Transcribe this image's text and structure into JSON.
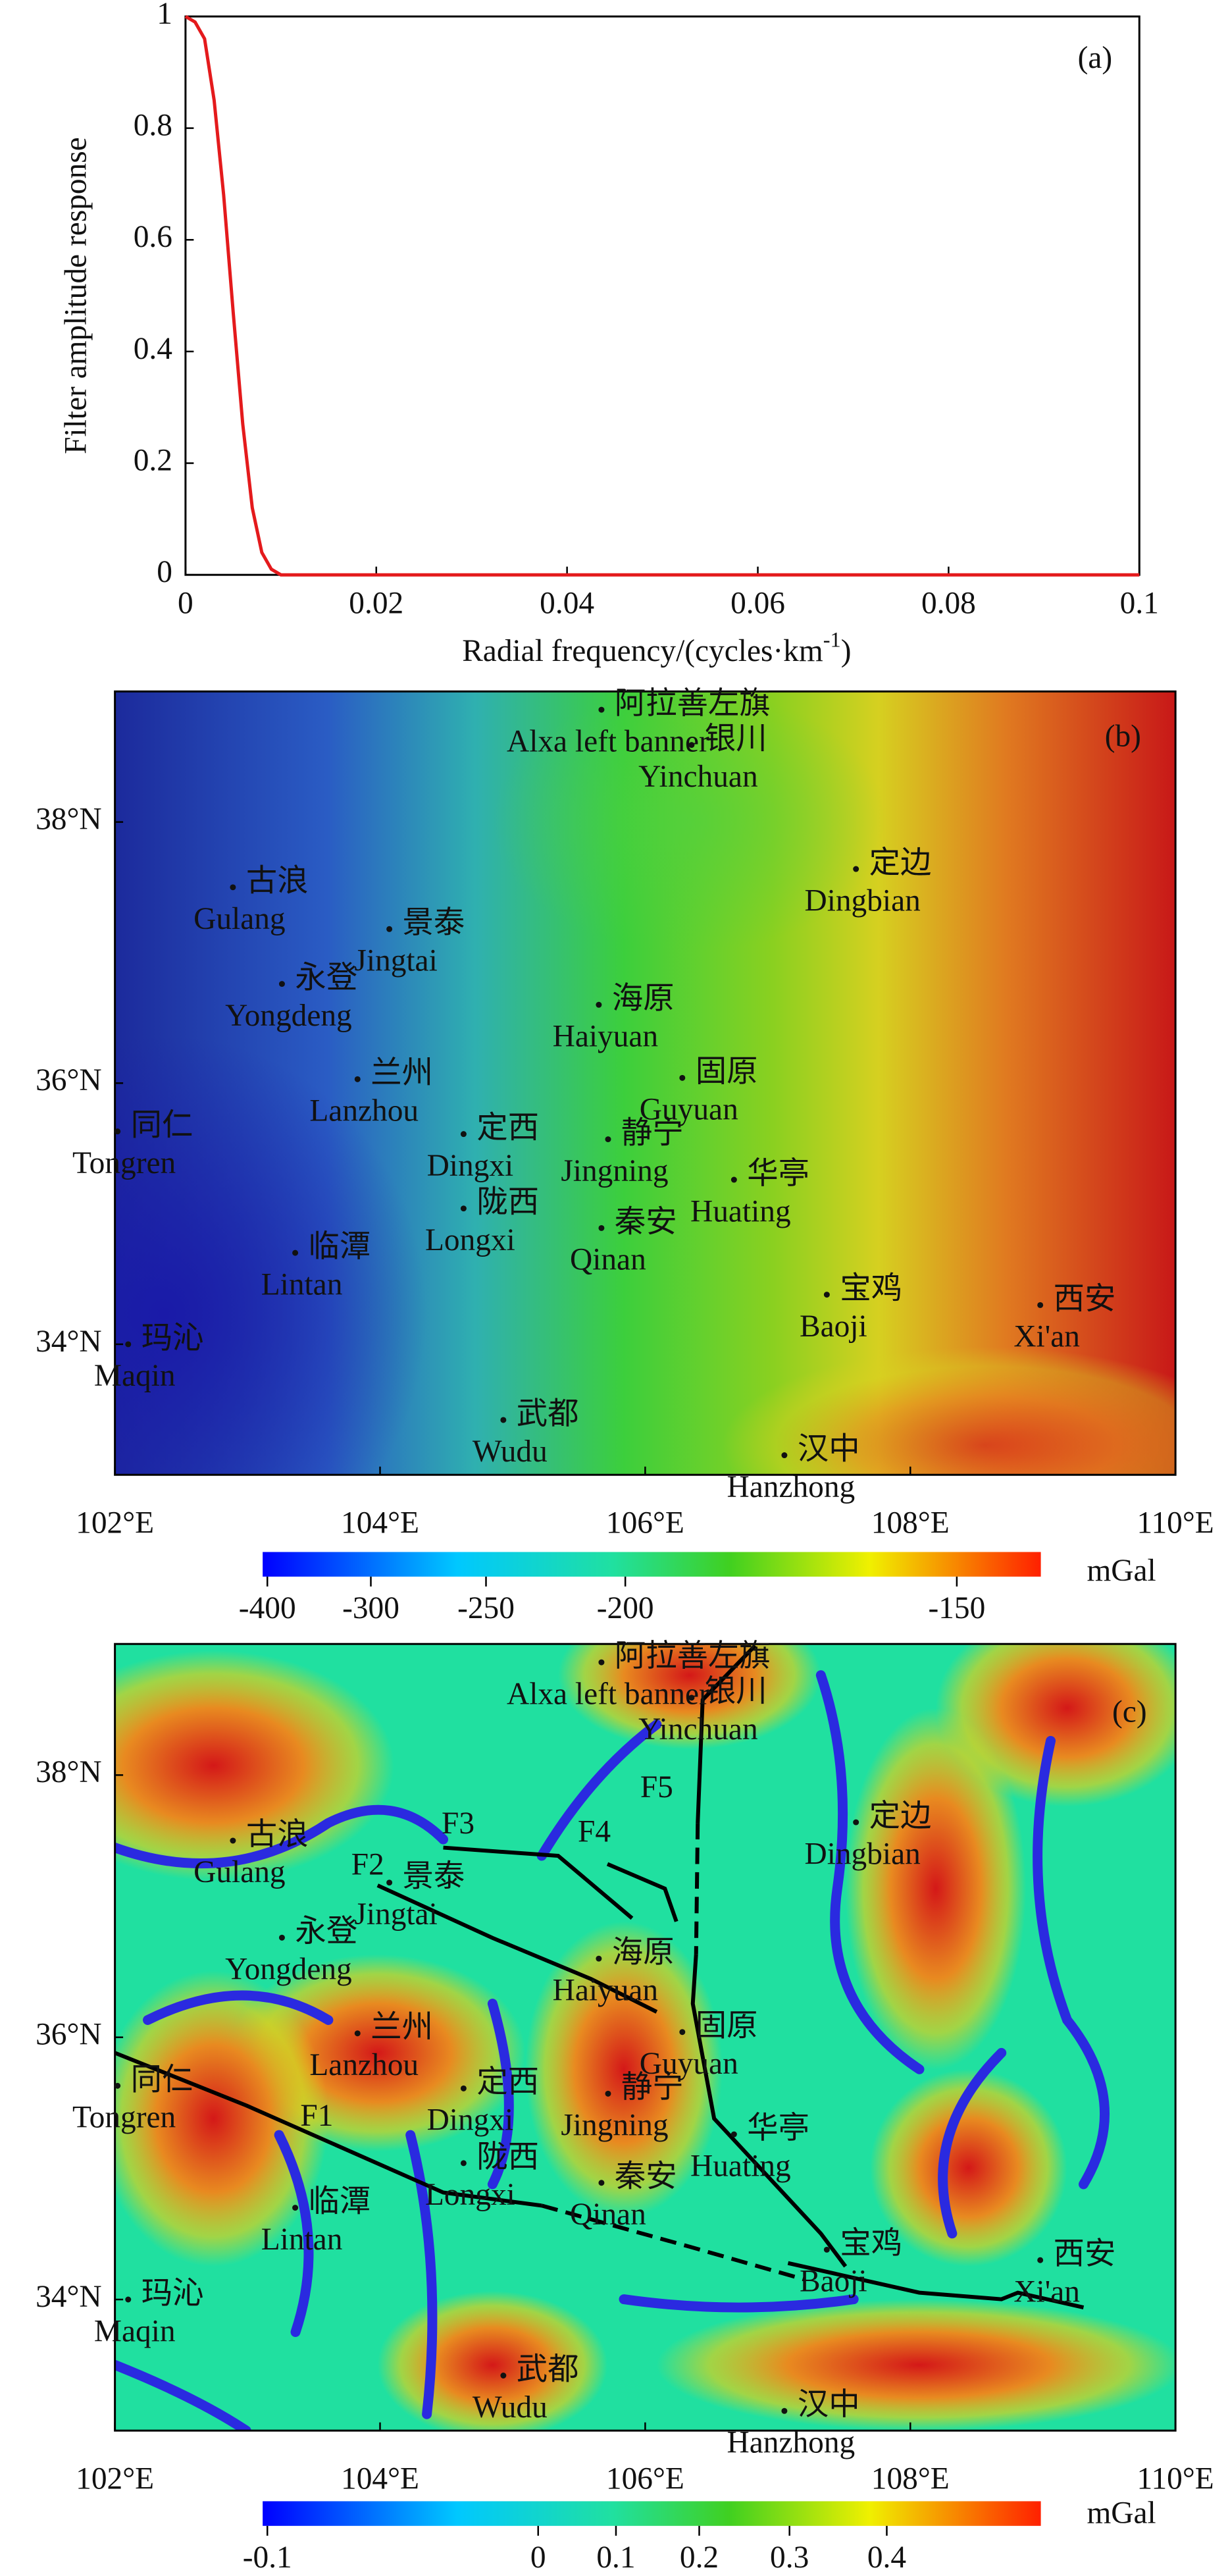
{
  "chart_data": [
    {
      "type": "line",
      "panel_label": "(a)",
      "x_label": "Radial frequency/(cycles·km",
      "x_label_sup": "-1",
      "x_label_end": ")",
      "y_label": "Filter amplitude response",
      "x": [
        0,
        0.001,
        0.002,
        0.003,
        0.004,
        0.005,
        0.006,
        0.007,
        0.008,
        0.009,
        0.01,
        0.02,
        0.03,
        0.04,
        0.05,
        0.06,
        0.07,
        0.08,
        0.09,
        0.1
      ],
      "values": [
        1,
        0.99,
        0.96,
        0.85,
        0.68,
        0.47,
        0.27,
        0.12,
        0.04,
        0.01,
        0,
        0,
        0,
        0,
        0,
        0,
        0,
        0,
        0,
        0
      ],
      "color": "#e41a1c",
      "xlim": [
        0,
        0.1
      ],
      "ylim": [
        0,
        1
      ],
      "xticks": [
        0,
        0.02,
        0.04,
        0.06,
        0.08,
        0.1
      ],
      "yticks": [
        0,
        0.2,
        0.4,
        0.6,
        0.8,
        1
      ]
    },
    {
      "type": "map",
      "panel_label": "(b)",
      "xlim": [
        102,
        110
      ],
      "ylim": [
        33,
        39
      ],
      "xticks": [
        {
          "value": 102,
          "label": "102°E"
        },
        {
          "value": 104,
          "label": "104°E"
        },
        {
          "value": 106,
          "label": "106°E"
        },
        {
          "value": 108,
          "label": "108°E"
        },
        {
          "value": 110,
          "label": "110°E"
        }
      ],
      "yticks": [
        {
          "value": 34,
          "label": "34°N"
        },
        {
          "value": 36,
          "label": "36°N"
        },
        {
          "value": 38,
          "label": "38°N"
        }
      ],
      "cities": [
        {
          "name_zh": "阿拉善左旗",
          "name_en": "Alxa left banner",
          "lon": 105.67,
          "lat": 38.86
        },
        {
          "name_zh": "银川",
          "name_en": "Yinchuan",
          "lon": 106.35,
          "lat": 38.59
        },
        {
          "name_zh": "定边",
          "name_en": "Dingbian",
          "lon": 107.59,
          "lat": 37.64
        },
        {
          "name_zh": "古浪",
          "name_en": "Gulang",
          "lon": 102.89,
          "lat": 37.5
        },
        {
          "name_zh": "景泰",
          "name_en": "Jingtai",
          "lon": 104.07,
          "lat": 37.18
        },
        {
          "name_zh": "永登",
          "name_en": "Yongdeng",
          "lon": 103.26,
          "lat": 36.76
        },
        {
          "name_zh": "海原",
          "name_en": "Haiyuan",
          "lon": 105.65,
          "lat": 36.6
        },
        {
          "name_zh": "固原",
          "name_en": "Guyuan",
          "lon": 106.28,
          "lat": 36.04
        },
        {
          "name_zh": "兰州",
          "name_en": "Lanzhou",
          "lon": 103.83,
          "lat": 36.03
        },
        {
          "name_zh": "同仁",
          "name_en": "Tongren",
          "lon": 102.02,
          "lat": 35.63
        },
        {
          "name_zh": "定西",
          "name_en": "Dingxi",
          "lon": 104.63,
          "lat": 35.61
        },
        {
          "name_zh": "静宁",
          "name_en": "Jingning",
          "lon": 105.72,
          "lat": 35.57
        },
        {
          "name_zh": "华亭",
          "name_en": "Huating",
          "lon": 106.67,
          "lat": 35.26
        },
        {
          "name_zh": "临潭",
          "name_en": "Lintan",
          "lon": 103.36,
          "lat": 34.7
        },
        {
          "name_zh": "陇西",
          "name_en": "Longxi",
          "lon": 104.63,
          "lat": 35.04
        },
        {
          "name_zh": "秦安",
          "name_en": "Qinan",
          "lon": 105.67,
          "lat": 34.89
        },
        {
          "name_zh": "宝鸡",
          "name_en": "Baoji",
          "lon": 107.37,
          "lat": 34.38
        },
        {
          "name_zh": "西安",
          "name_en": "Xi'an",
          "lon": 108.98,
          "lat": 34.3
        },
        {
          "name_zh": "玛沁",
          "name_en": "Maqin",
          "lon": 102.1,
          "lat": 34.0
        },
        {
          "name_zh": "武都",
          "name_en": "Wudu",
          "lon": 104.93,
          "lat": 33.42
        },
        {
          "name_zh": "汉中",
          "name_en": "Hanzhong",
          "lon": 107.05,
          "lat": 33.15
        }
      ],
      "colorbar": {
        "unit": "mGal",
        "ticks": [
          -400,
          -300,
          -250,
          -200,
          -150
        ]
      }
    },
    {
      "type": "map",
      "panel_label": "(c)",
      "xlim": [
        102,
        110
      ],
      "ylim": [
        33,
        39
      ],
      "xticks": [
        {
          "value": 102,
          "label": "102°E"
        },
        {
          "value": 104,
          "label": "104°E"
        },
        {
          "value": 106,
          "label": "106°E"
        },
        {
          "value": 108,
          "label": "108°E"
        },
        {
          "value": 110,
          "label": "110°E"
        }
      ],
      "yticks": [
        {
          "value": 34,
          "label": "34°N"
        },
        {
          "value": 36,
          "label": "36°N"
        },
        {
          "value": 38,
          "label": "38°N"
        }
      ],
      "faults": [
        "F1",
        "F2",
        "F3",
        "F4",
        "F5"
      ],
      "colorbar": {
        "unit": "mGal",
        "ticks": [
          -0.1,
          0,
          0.1,
          0.2,
          0.3,
          0.4
        ]
      }
    }
  ]
}
